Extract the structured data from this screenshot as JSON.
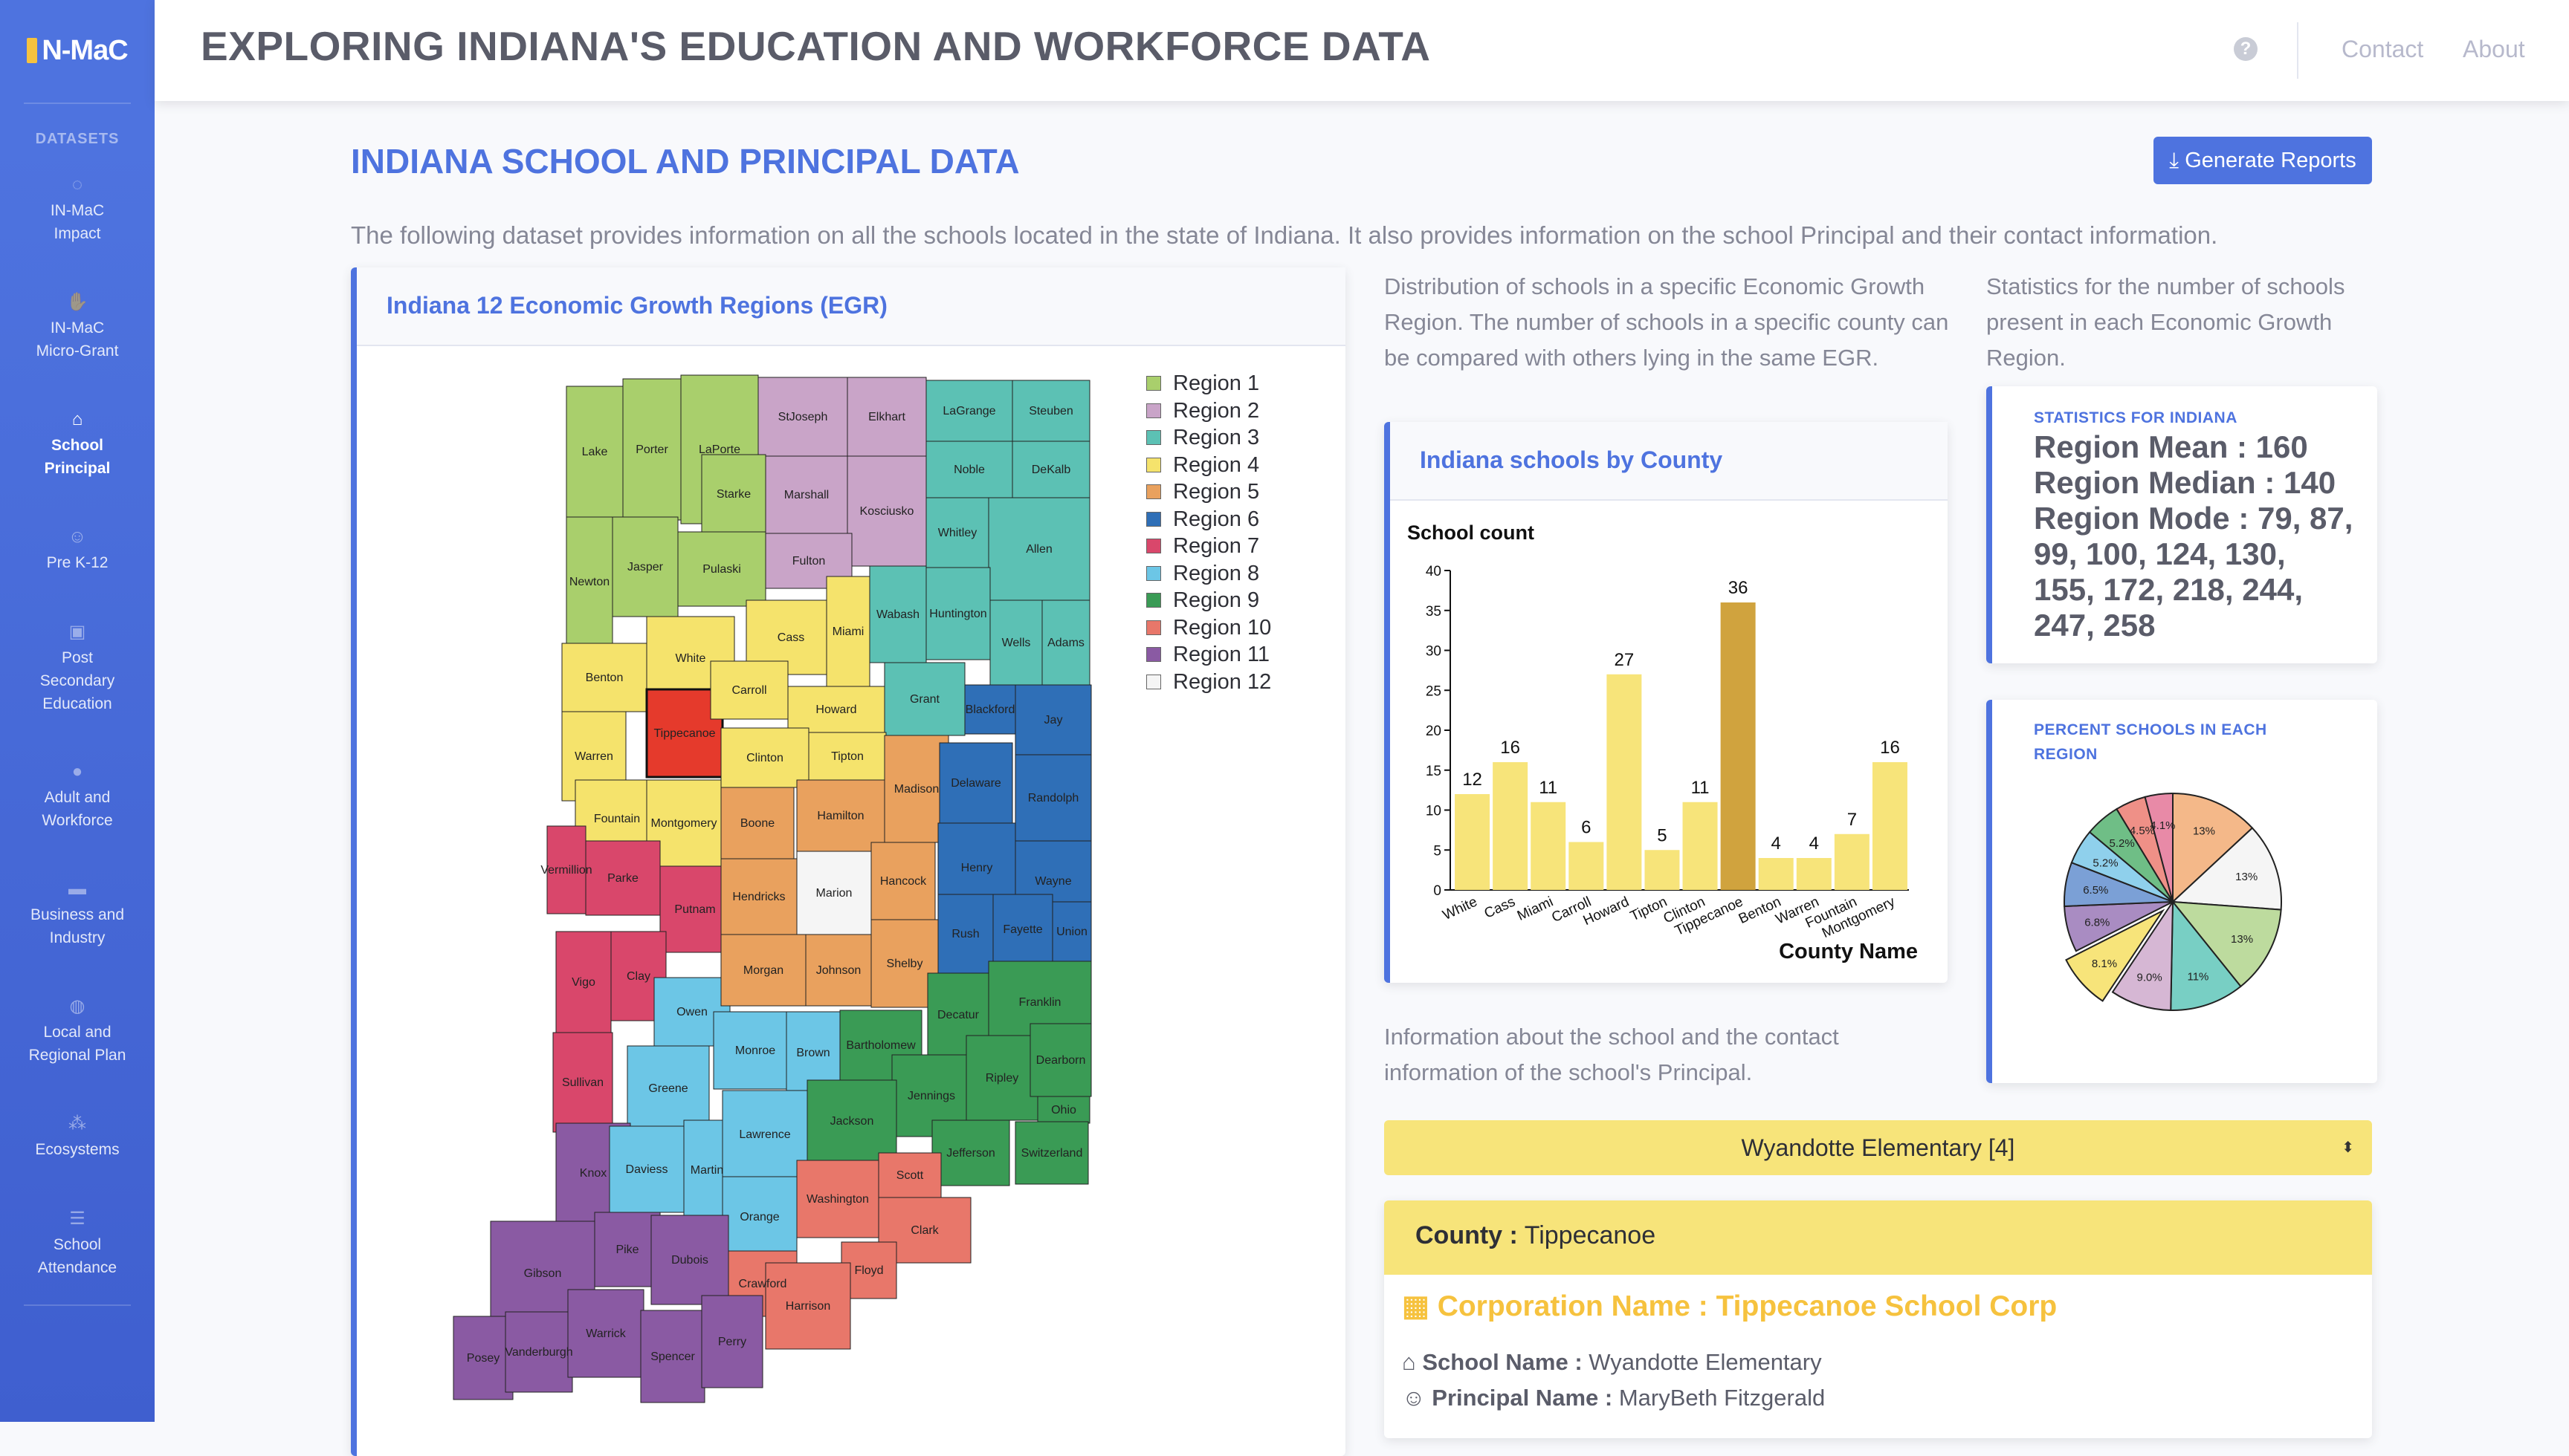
{
  "brand": {
    "name": "N-MaC"
  },
  "sidebar": {
    "heading": "DATASETS",
    "items": [
      {
        "label1": "IN-MaC",
        "label2": "Impact",
        "icon": "spinner-icon"
      },
      {
        "label1": "IN-MaC",
        "label2": "Micro-Grant",
        "icon": "hand-holding-icon"
      },
      {
        "label1": "School",
        "label2": "Principal",
        "icon": "school-icon",
        "active": true
      },
      {
        "label1": "Pre K-12",
        "label2": "",
        "icon": "child-icon"
      },
      {
        "label1": "Post",
        "label2": "Secondary",
        "label3": "Education",
        "icon": "chalkboard-icon"
      },
      {
        "label1": "Adult and",
        "label2": "Workforce",
        "icon": "user-icon"
      },
      {
        "label1": "Business and",
        "label2": "Industry",
        "icon": "briefcase-icon"
      },
      {
        "label1": "Local and",
        "label2": "Regional Plan",
        "icon": "globe-icon"
      },
      {
        "label1": "Ecosystems",
        "label2": "",
        "icon": "sitemap-icon"
      },
      {
        "label1": "School",
        "label2": "Attendance",
        "icon": "list-icon"
      }
    ]
  },
  "topbar": {
    "title": "EXPLORING INDIANA'S EDUCATION AND WORKFORCE DATA",
    "help": "?",
    "contact": "Contact",
    "about": "About"
  },
  "main": {
    "section_title": "INDIANA SCHOOL AND PRINCIPAL DATA",
    "generate_button": "Generate Reports",
    "intro": "The following dataset provides information on all the schools located in the state of Indiana. It also provides information on the school Principal and their contact information."
  },
  "map_card": {
    "title": "Indiana 12 Economic Growth Regions (EGR)",
    "legend": [
      {
        "label": "Region 1",
        "color": "#a9cf6c"
      },
      {
        "label": "Region 2",
        "color": "#c9a4c8"
      },
      {
        "label": "Region 3",
        "color": "#5cc1b4"
      },
      {
        "label": "Region 4",
        "color": "#f5e36c"
      },
      {
        "label": "Region 5",
        "color": "#e9a15e"
      },
      {
        "label": "Region 6",
        "color": "#2f6fb7"
      },
      {
        "label": "Region 7",
        "color": "#d9476b"
      },
      {
        "label": "Region 8",
        "color": "#6cc6e6"
      },
      {
        "label": "Region 9",
        "color": "#3a9b55"
      },
      {
        "label": "Region 10",
        "color": "#e8776a"
      },
      {
        "label": "Region 11",
        "color": "#8a5aa3"
      },
      {
        "label": "Region 12",
        "color": "#f5f5f5"
      }
    ],
    "counties": [
      {
        "name": "Lake",
        "c": "#a9cf6c"
      },
      {
        "name": "Porter",
        "c": "#a9cf6c"
      },
      {
        "name": "LaPorte",
        "c": "#a9cf6c"
      },
      {
        "name": "StJoseph",
        "c": "#c9a4c8"
      },
      {
        "name": "Elkhart",
        "c": "#c9a4c8"
      },
      {
        "name": "LaGrange",
        "c": "#5cc1b4"
      },
      {
        "name": "Steuben",
        "c": "#5cc1b4"
      },
      {
        "name": "Newton",
        "c": "#a9cf6c"
      },
      {
        "name": "Jasper",
        "c": "#a9cf6c"
      },
      {
        "name": "Starke",
        "c": "#a9cf6c"
      },
      {
        "name": "Marshall",
        "c": "#c9a4c8"
      },
      {
        "name": "Kosciusko",
        "c": "#c9a4c8"
      },
      {
        "name": "Noble",
        "c": "#5cc1b4"
      },
      {
        "name": "DeKalb",
        "c": "#5cc1b4"
      },
      {
        "name": "Pulaski",
        "c": "#a9cf6c"
      },
      {
        "name": "Fulton",
        "c": "#c9a4c8"
      },
      {
        "name": "Whitley",
        "c": "#5cc1b4"
      },
      {
        "name": "Allen",
        "c": "#5cc1b4"
      },
      {
        "name": "Benton",
        "c": "#f5e36c"
      },
      {
        "name": "White",
        "c": "#f5e36c"
      },
      {
        "name": "Cass",
        "c": "#f5e36c"
      },
      {
        "name": "Miami",
        "c": "#f5e36c"
      },
      {
        "name": "Wabash",
        "c": "#5cc1b4"
      },
      {
        "name": "Huntington",
        "c": "#5cc1b4"
      },
      {
        "name": "Wells",
        "c": "#5cc1b4"
      },
      {
        "name": "Adams",
        "c": "#5cc1b4"
      },
      {
        "name": "Warren",
        "c": "#f5e36c"
      },
      {
        "name": "Tippecanoe",
        "c": "#e53a2c"
      },
      {
        "name": "Carroll",
        "c": "#f5e36c"
      },
      {
        "name": "Howard",
        "c": "#f5e36c"
      },
      {
        "name": "Grant",
        "c": "#5cc1b4"
      },
      {
        "name": "Blackford",
        "c": "#2f6fb7"
      },
      {
        "name": "Jay",
        "c": "#2f6fb7"
      },
      {
        "name": "Fountain",
        "c": "#f5e36c"
      },
      {
        "name": "Montgomery",
        "c": "#f5e36c"
      },
      {
        "name": "Clinton",
        "c": "#f5e36c"
      },
      {
        "name": "Tipton",
        "c": "#f5e36c"
      },
      {
        "name": "Madison",
        "c": "#e9a15e"
      },
      {
        "name": "Delaware",
        "c": "#2f6fb7"
      },
      {
        "name": "Randolph",
        "c": "#2f6fb7"
      },
      {
        "name": "Vermillion",
        "c": "#d9476b"
      },
      {
        "name": "Parke",
        "c": "#d9476b"
      },
      {
        "name": "Putnam",
        "c": "#d9476b"
      },
      {
        "name": "Boone",
        "c": "#e9a15e"
      },
      {
        "name": "Hamilton",
        "c": "#e9a15e"
      },
      {
        "name": "Henry",
        "c": "#2f6fb7"
      },
      {
        "name": "Wayne",
        "c": "#2f6fb7"
      },
      {
        "name": "Vigo",
        "c": "#d9476b"
      },
      {
        "name": "Clay",
        "c": "#d9476b"
      },
      {
        "name": "Hendricks",
        "c": "#e9a15e"
      },
      {
        "name": "Marion",
        "c": "#f5f5f5"
      },
      {
        "name": "Hancock",
        "c": "#e9a15e"
      },
      {
        "name": "Rush",
        "c": "#2f6fb7"
      },
      {
        "name": "Fayette",
        "c": "#2f6fb7"
      },
      {
        "name": "Union",
        "c": "#2f6fb7"
      },
      {
        "name": "Sullivan",
        "c": "#d9476b"
      },
      {
        "name": "Owen",
        "c": "#6cc6e6"
      },
      {
        "name": "Morgan",
        "c": "#e9a15e"
      },
      {
        "name": "Johnson",
        "c": "#e9a15e"
      },
      {
        "name": "Shelby",
        "c": "#e9a15e"
      },
      {
        "name": "Decatur",
        "c": "#3a9b55"
      },
      {
        "name": "Franklin",
        "c": "#3a9b55"
      },
      {
        "name": "Greene",
        "c": "#6cc6e6"
      },
      {
        "name": "Monroe",
        "c": "#6cc6e6"
      },
      {
        "name": "Brown",
        "c": "#6cc6e6"
      },
      {
        "name": "Bartholomew",
        "c": "#3a9b55"
      },
      {
        "name": "Jennings",
        "c": "#3a9b55"
      },
      {
        "name": "Ripley",
        "c": "#3a9b55"
      },
      {
        "name": "Dearborn",
        "c": "#3a9b55"
      },
      {
        "name": "Ohio",
        "c": "#3a9b55"
      },
      {
        "name": "Knox",
        "c": "#8a5aa3"
      },
      {
        "name": "Daviess",
        "c": "#6cc6e6"
      },
      {
        "name": "Martin",
        "c": "#6cc6e6"
      },
      {
        "name": "Lawrence",
        "c": "#6cc6e6"
      },
      {
        "name": "Jackson",
        "c": "#3a9b55"
      },
      {
        "name": "Jefferson",
        "c": "#3a9b55"
      },
      {
        "name": "Switzerland",
        "c": "#3a9b55"
      },
      {
        "name": "Orange",
        "c": "#6cc6e6"
      },
      {
        "name": "Washington",
        "c": "#e8776a"
      },
      {
        "name": "Scott",
        "c": "#e8776a"
      },
      {
        "name": "Clark",
        "c": "#e8776a"
      },
      {
        "name": "Gibson",
        "c": "#8a5aa3"
      },
      {
        "name": "Pike",
        "c": "#8a5aa3"
      },
      {
        "name": "Dubois",
        "c": "#8a5aa3"
      },
      {
        "name": "Crawford",
        "c": "#e8776a"
      },
      {
        "name": "Floyd",
        "c": "#e8776a"
      },
      {
        "name": "Posey",
        "c": "#8a5aa3"
      },
      {
        "name": "Vanderburgh",
        "c": "#8a5aa3"
      },
      {
        "name": "Warrick",
        "c": "#8a5aa3"
      },
      {
        "name": "Spencer",
        "c": "#8a5aa3"
      },
      {
        "name": "Perry",
        "c": "#8a5aa3"
      },
      {
        "name": "Harrison",
        "c": "#e8776a"
      }
    ]
  },
  "mid": {
    "desc": "Distribution of schools in a specific Economic Growth Region. The number of schools in a specific county can be compared with others lying in the same EGR.",
    "info_desc": "Information about the school and the contact information of the school's Principal."
  },
  "bar_card": {
    "title": "Indiana schools by County"
  },
  "right": {
    "desc": "Statistics for the number of schools present in each Economic Growth Region.",
    "stats_heading": "STATISTICS FOR INDIANA",
    "mean": "Region Mean : 160",
    "median": "Region Median : 140",
    "mode": "Region Mode : 79, 87, 99, 100, 124, 130, 155, 172, 218, 244, 247, 258",
    "pie_heading": "PERCENT SCHOOLS IN EACH REGION"
  },
  "school": {
    "selected": "Wyandotte Elementary [4]",
    "county_label": "County :",
    "county": "Tippecanoe",
    "corp_label": "Corporation Name :",
    "corp": "Tippecanoe School Corp",
    "school_label": "School Name :",
    "school_name": "Wyandotte Elementary",
    "principal_label": "Principal Name :",
    "principal": "MaryBeth Fitzgerald"
  },
  "chart_data": [
    {
      "type": "bar",
      "title": "",
      "ylabel": "School count",
      "xlabel": "County Name",
      "ylim": [
        0,
        40
      ],
      "yticks": [
        0,
        5,
        10,
        15,
        20,
        25,
        30,
        35,
        40
      ],
      "categories": [
        "White",
        "Cass",
        "Miami",
        "Carroll",
        "Howard",
        "Tipton",
        "Clinton",
        "Tippecanoe",
        "Benton",
        "Warren",
        "Fountain",
        "Montgomery"
      ],
      "values": [
        12,
        16,
        11,
        6,
        27,
        5,
        11,
        36,
        4,
        4,
        7,
        16
      ],
      "bar_color": "#f7e47a",
      "highlight": "Tippecanoe",
      "highlight_color": "#d0a33e"
    },
    {
      "type": "pie",
      "labels": [
        "13%",
        "13%",
        "13%",
        "11%",
        "9.0%",
        "8.1%",
        "6.8%",
        "6.5%",
        "5.2%",
        "5.2%",
        "4.5%",
        "4.1%"
      ],
      "values": [
        13,
        13,
        13,
        11,
        9.0,
        8.1,
        6.8,
        6.5,
        5.2,
        5.2,
        4.5,
        4.1
      ],
      "colors": [
        "#f4b889",
        "#f5f5f5",
        "#bddb9e",
        "#78cfc4",
        "#d6b7d4",
        "#f7e47a",
        "#a98cc2",
        "#7ba0d6",
        "#8fd0ec",
        "#6fbe86",
        "#ef9087",
        "#e88aa7"
      ],
      "pulled_index": 5
    }
  ]
}
